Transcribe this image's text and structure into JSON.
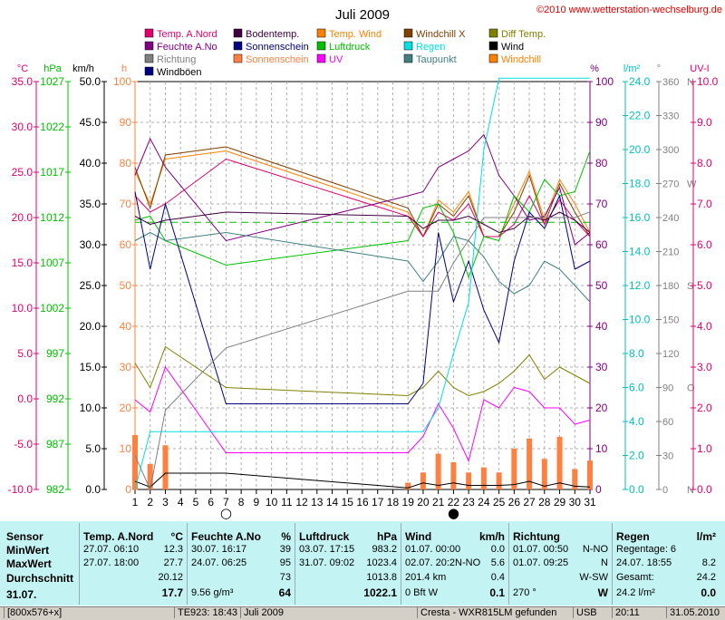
{
  "chart_data": {
    "type": "line",
    "title": "Juli 2009",
    "copyright": "©2010 www.wetterstation-wechselburg.de",
    "x": [
      1,
      2,
      3,
      4,
      5,
      6,
      7,
      8,
      9,
      10,
      11,
      12,
      13,
      14,
      15,
      16,
      17,
      18,
      19,
      20,
      21,
      22,
      23,
      24,
      25,
      26,
      27,
      28,
      29,
      30,
      31
    ],
    "legend": [
      {
        "label": "Temp. A.Nord",
        "color": "#e00070"
      },
      {
        "label": "Bodentemp.",
        "color": "#400040"
      },
      {
        "label": "Temp. Wind",
        "color": "#ff8000"
      },
      {
        "label": "Windchill X",
        "color": "#804000"
      },
      {
        "label": "Diff Temp.",
        "color": "#808000"
      },
      {
        "label": "Feuchte A.No",
        "color": "#800080"
      },
      {
        "label": "Sonnenschein",
        "color": "#000080"
      },
      {
        "label": "Luftdruck",
        "color": "#00c000"
      },
      {
        "label": "Regen",
        "color": "#00e0e0"
      },
      {
        "label": "Wind",
        "color": "#000000"
      },
      {
        "label": "Richtung",
        "color": "#808080"
      },
      {
        "label": "Sonnenschein",
        "color": "#ff8040"
      },
      {
        "label": "UV",
        "color": "#ff00ff"
      },
      {
        "label": "Taupunkt",
        "color": "#408080"
      },
      {
        "label": "Windchill",
        "color": "#ff8000"
      },
      {
        "label": "Windböen",
        "color": "#000080"
      }
    ],
    "axes": {
      "temp_c": {
        "title": "°C",
        "color": "#e00070",
        "ticks": [
          "35.0",
          "30.0",
          "25.0",
          "20.0",
          "15.0",
          "10.0",
          "5.0",
          "0.0",
          "-5.0",
          "-10.0"
        ]
      },
      "pressure_hpa": {
        "title": "hPa",
        "color": "#00c000",
        "ticks": [
          "1027",
          "1022",
          "1017",
          "1012",
          "1007",
          "1002",
          "997",
          "992",
          "987",
          "982"
        ]
      },
      "wind_kmh": {
        "title": "km/h",
        "color": "#000000",
        "ticks": [
          "50.0",
          "45.0",
          "40.0",
          "35.0",
          "30.0",
          "25.0",
          "20.0",
          "15.0",
          "10.0",
          "5.0",
          "0.0"
        ]
      },
      "sun_h": {
        "title": "h",
        "color": "#ff8040",
        "ticks": [
          "100",
          "90",
          "80",
          "70",
          "60",
          "50",
          "40",
          "30",
          "20",
          "10",
          "0"
        ]
      },
      "humidity_pct": {
        "title": "%",
        "color": "#800080",
        "ticks": [
          "100",
          "90",
          "80",
          "70",
          "60",
          "50",
          "40",
          "30",
          "20",
          "10",
          "0"
        ]
      },
      "rain_lm2": {
        "title": "l/m²",
        "color": "#00c0c0",
        "ticks": [
          "24.0",
          "22.0",
          "20.0",
          "18.0",
          "16.0",
          "14.0",
          "12.0",
          "10.0",
          "8.0",
          "6.0",
          "4.0",
          "2.0",
          "0.0"
        ]
      },
      "direction_deg": {
        "title": "°",
        "color": "#808080",
        "ticks": [
          "360",
          "330",
          "300",
          "270",
          "240",
          "210",
          "180",
          "150",
          "120",
          "90",
          "60",
          "30",
          "0"
        ],
        "compass": {
          "360": "N",
          "270": "W",
          "180": "S",
          "90": "O",
          "0": "N"
        }
      },
      "uv_index": {
        "title": "UV-I",
        "color": "#e00070",
        "ticks": [
          "10.0",
          "9.0",
          "8.0",
          "7.0",
          "6.0",
          "5.0",
          "4.0",
          "3.0",
          "2.0",
          "1.0",
          "0.0"
        ]
      }
    },
    "series": [
      {
        "name": "Temp. Wind",
        "color": "#ff8000",
        "axis": "sun_h",
        "x": [
          1,
          2,
          3,
          7,
          19,
          20,
          21,
          22,
          23,
          24,
          25,
          26,
          27,
          28,
          29,
          30,
          31
        ],
        "values": [
          78,
          70,
          81,
          83,
          68,
          62,
          71,
          68,
          73,
          62,
          62,
          70,
          78,
          66,
          76,
          70,
          63
        ]
      },
      {
        "name": "Windchill X",
        "color": "#804000",
        "axis": "sun_h",
        "x": [
          1,
          2,
          3,
          7,
          19,
          20,
          21,
          22,
          23,
          24,
          25,
          26,
          27,
          28,
          29,
          30,
          31
        ],
        "values": [
          79,
          69,
          82,
          84,
          69,
          62,
          70,
          67,
          72,
          62,
          62,
          68,
          77,
          65,
          75,
          68,
          62
        ]
      },
      {
        "name": "Temp. A.Nord",
        "color": "#e00070",
        "axis": "sun_h",
        "x": [
          1,
          2,
          3,
          7,
          19,
          20,
          21,
          22,
          23,
          24,
          25,
          26,
          27,
          28,
          29,
          30,
          31
        ],
        "values": [
          72,
          68,
          70,
          81,
          67,
          62,
          68,
          66,
          70,
          62,
          62,
          65,
          72,
          65,
          71,
          66,
          62
        ]
      },
      {
        "name": "Feuchte A.No",
        "color": "#800080",
        "axis": "humidity_pct",
        "x": [
          1,
          2,
          3,
          7,
          19,
          20,
          21,
          22,
          23,
          24,
          25,
          26,
          27,
          28,
          29,
          30,
          31
        ],
        "values": [
          77,
          86,
          79,
          61,
          72,
          73,
          79,
          81,
          83,
          87,
          77,
          72,
          66,
          67,
          74,
          60,
          63
        ]
      },
      {
        "name": "Luftdruck",
        "color": "#00c000",
        "axis": "humidity_pct",
        "x": [
          1,
          2,
          3,
          7,
          19,
          20,
          21,
          22,
          23,
          24,
          25,
          26,
          27,
          28,
          29,
          30,
          31
        ],
        "values": [
          66,
          67,
          61,
          55,
          61,
          69,
          70,
          63,
          52,
          62,
          61,
          72,
          68,
          76,
          72,
          73,
          83
        ]
      },
      {
        "name": "Luftdruck Mittel",
        "color": "#00c000",
        "dashed": true,
        "axis": "humidity_pct",
        "x": [
          1,
          31
        ],
        "values": [
          65.5,
          65.5
        ]
      },
      {
        "name": "Bodentemp.",
        "color": "#400040",
        "axis": "humidity_pct",
        "x": [
          1,
          2,
          3,
          7,
          19,
          20,
          21,
          22,
          23,
          24,
          25,
          26,
          27,
          28,
          29,
          30,
          31
        ],
        "values": [
          67,
          65,
          66,
          68,
          67,
          64,
          66,
          66,
          67,
          65,
          63,
          64,
          67,
          66,
          68,
          66,
          63
        ]
      },
      {
        "name": "Taupunkt",
        "color": "#408080",
        "axis": "humidity_pct",
        "x": [
          1,
          2,
          3,
          7,
          19,
          20,
          21,
          22,
          23,
          24,
          25,
          26,
          27,
          28,
          29,
          30,
          31
        ],
        "values": [
          61,
          63,
          61,
          63,
          56,
          51,
          56,
          62,
          61,
          57,
          51,
          48,
          50,
          56,
          54,
          50,
          46
        ]
      },
      {
        "name": "Diff Temp.",
        "color": "#808000",
        "axis": "humidity_pct",
        "x": [
          1,
          2,
          3,
          7,
          19,
          20,
          21,
          22,
          23,
          24,
          25,
          26,
          27,
          28,
          29,
          30,
          31
        ],
        "values": [
          31,
          25,
          35,
          25,
          23,
          25,
          29,
          25,
          23,
          24,
          26,
          29,
          33,
          27,
          30,
          28,
          26
        ]
      },
      {
        "name": "UV",
        "color": "#ff00ff",
        "axis": "uv_index",
        "x": [
          1,
          2,
          3,
          7,
          19,
          20,
          21,
          22,
          23,
          24,
          25,
          26,
          27,
          28,
          29,
          30,
          31
        ],
        "values": [
          2.2,
          1.9,
          3.0,
          0.9,
          0.9,
          1.3,
          2.1,
          1.5,
          0.7,
          2.2,
          2.0,
          2.5,
          2.4,
          2.0,
          2.0,
          1.6,
          1.7
        ]
      },
      {
        "name": "Sonnenschein",
        "color": "#000080",
        "axis": "wind_kmh",
        "x": [
          1,
          2,
          3,
          7,
          19,
          20,
          21,
          22,
          23,
          24,
          25,
          26,
          27,
          28,
          29,
          30,
          31
        ],
        "values": [
          36.5,
          27.0,
          35.0,
          10.5,
          10.5,
          13.0,
          31.5,
          23.0,
          28.0,
          22.0,
          18.0,
          28.0,
          34.0,
          32.0,
          36.0,
          27.0,
          28.0
        ]
      },
      {
        "name": "Wind",
        "color": "#000000",
        "axis": "wind_kmh",
        "x": [
          1,
          2,
          3,
          7,
          19,
          20,
          21,
          22,
          23,
          24,
          25,
          26,
          27,
          28,
          29,
          30,
          31
        ],
        "values": [
          1.0,
          0.3,
          2.0,
          2.0,
          0.2,
          0.8,
          0.5,
          0.8,
          0.5,
          0.5,
          0.5,
          0.6,
          1.0,
          0.4,
          0.8,
          0.4,
          0.3
        ]
      },
      {
        "name": "Regen",
        "color": "#00e0e0",
        "axis": "rain_lm2",
        "x": [
          1,
          2,
          3,
          7,
          19,
          20,
          21,
          22,
          23,
          24,
          25,
          26,
          27,
          28,
          29,
          30,
          31
        ],
        "values": [
          0,
          3.4,
          3.4,
          3.4,
          3.4,
          3.4,
          4.8,
          8.0,
          11.0,
          20.0,
          24.2,
          24.2,
          24.2,
          24.2,
          24.2,
          24.2,
          24.2
        ]
      },
      {
        "name": "Richtung",
        "color": "#808080",
        "axis": "direction_deg",
        "x": [
          1,
          2,
          3,
          7,
          19,
          20,
          21,
          22,
          23,
          24,
          25,
          26,
          27,
          28,
          29,
          30,
          31
        ],
        "values": [
          30,
          0,
          70,
          125,
          175,
          175,
          175,
          200,
          220,
          240,
          240,
          240,
          240,
          240,
          240,
          240,
          245
        ]
      }
    ],
    "bars": {
      "name": "Regen Tag",
      "color": "#ff8040",
      "axis": "rain_lm2",
      "x": [
        1,
        2,
        3,
        19,
        20,
        21,
        22,
        23,
        24,
        25,
        26,
        27,
        28,
        29,
        30,
        31
      ],
      "values": [
        3.2,
        1.5,
        2.6,
        0.4,
        1.0,
        2.1,
        1.6,
        1.0,
        1.3,
        1.0,
        2.4,
        3.0,
        1.8,
        3.1,
        1.2,
        1.7
      ]
    },
    "moon": [
      {
        "x": 7,
        "symbol": "○"
      },
      {
        "x": 22,
        "symbol": "●"
      }
    ]
  },
  "table": {
    "row_labels": [
      "Sensor",
      "MinWert",
      "MaxWert",
      "Durchschnitt",
      "31.07."
    ],
    "sections": [
      {
        "title": "Temp. A.Nord",
        "unit": "°C",
        "rows": [
          [
            "27.07.  06:10",
            "12.3"
          ],
          [
            "27.07.  18:00",
            "27.7"
          ],
          [
            "",
            "20.12"
          ],
          [
            "",
            "17.7"
          ]
        ]
      },
      {
        "title": "Feuchte A.No",
        "unit": "%",
        "rows": [
          [
            "30.07.  16:17",
            "39"
          ],
          [
            "24.07.  06:25",
            "95"
          ],
          [
            "",
            "73"
          ],
          [
            "9.56 g/m³",
            "64"
          ]
        ]
      },
      {
        "title": "Luftdruck",
        "unit": "hPa",
        "rows": [
          [
            "03.07.  17:15",
            "983.2"
          ],
          [
            "31.07.  09:02",
            "1023.4"
          ],
          [
            "",
            "1013.8"
          ],
          [
            "",
            "1022.1"
          ]
        ]
      },
      {
        "title": "Wind",
        "unit": "km/h",
        "rows": [
          [
            "01.07.  00:00",
            "0.0"
          ],
          [
            "02.07.  20:2N-NO",
            "5.6"
          ],
          [
            "201.4 km",
            "0.4"
          ],
          [
            "0 Bft W",
            "0.1"
          ]
        ]
      },
      {
        "title": "Richtung",
        "unit": "",
        "rows": [
          [
            "01.07.  00:50",
            "N-NO"
          ],
          [
            "01.07.  09:25",
            "N"
          ],
          [
            "",
            "W-SW"
          ],
          [
            "270 °",
            "W"
          ]
        ]
      },
      {
        "title": "Regen",
        "unit": "l/m²",
        "rows": [
          [
            "Regentage: 6",
            ""
          ],
          [
            "24.07.  18:55",
            "8.2"
          ],
          [
            "Gesamt:",
            "24.2"
          ],
          [
            "24.2 l/m²",
            "0.0"
          ]
        ]
      }
    ]
  },
  "status_bar": [
    "[800x576+x]",
    "TE923: 18:43",
    "Juli 2009",
    "Cresta - WXR815LM gefunden",
    "USB",
    "20:11",
    "31.05.2010"
  ]
}
